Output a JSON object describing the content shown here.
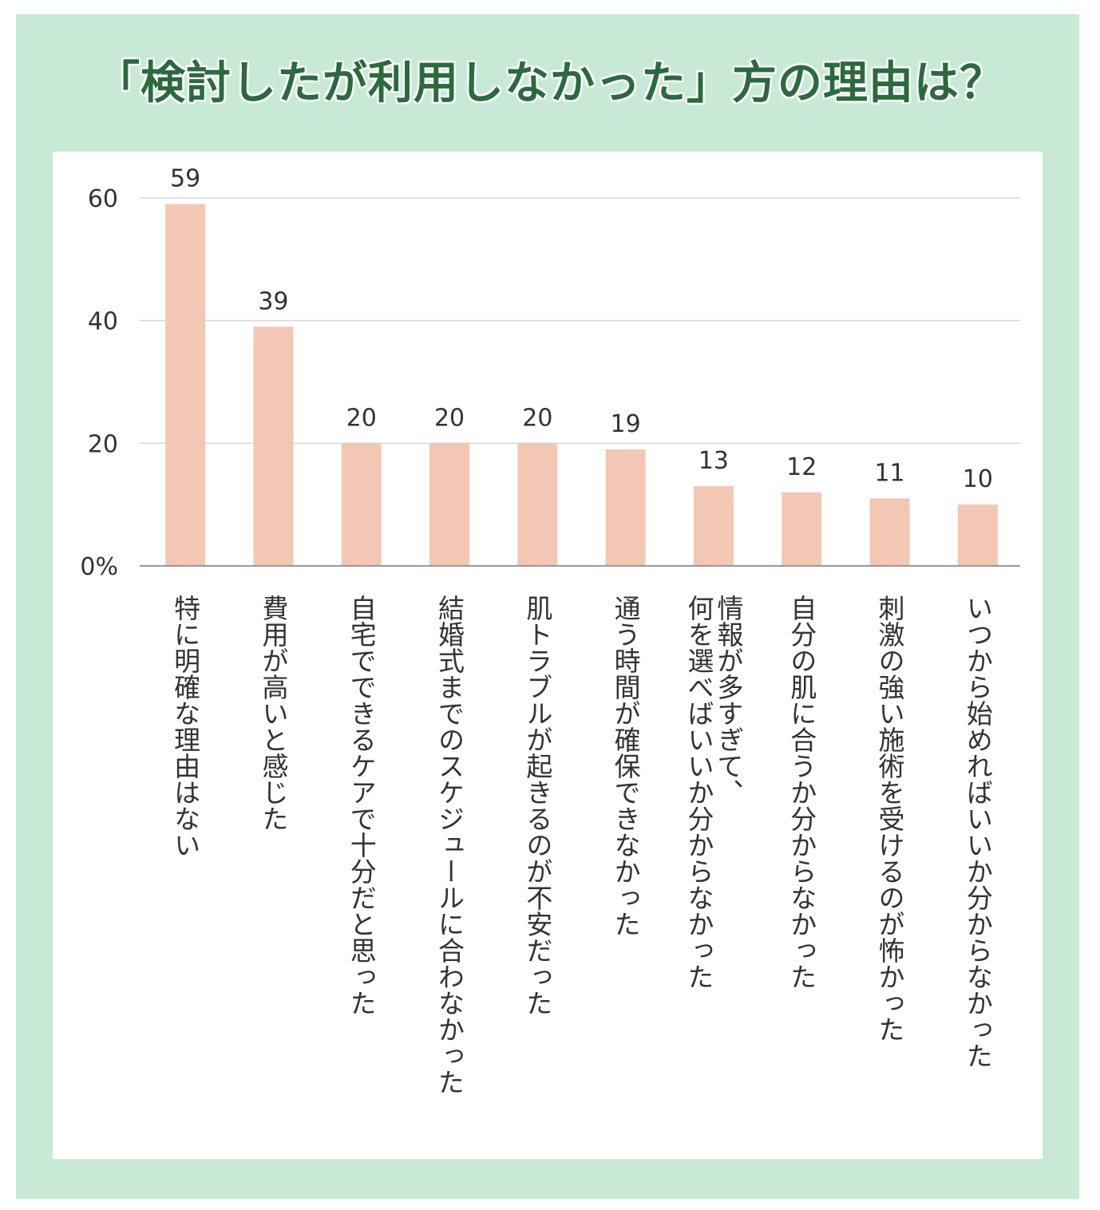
{
  "title": "「検討したが利用しなかった」方の理由は？",
  "chart_data": {
    "type": "bar",
    "title": "「検討したが利用しなかった」方の理由は？",
    "categories": [
      "特に明確な理由はない",
      "費用が高いと感じた",
      "自宅でできるケアで十分だと思った",
      "結婚式までのスケジュールに合わなかった",
      "肌トラブルが起きるのが不安だった",
      "通う時間が確保できなかった",
      "情報が多すぎて、\n何を選べばいいか分からなかった",
      "自分の肌に合うか分からなかった",
      "刺激の強い施術を受けるのが怖かった",
      "いつから始めればいいか分からなかった"
    ],
    "values": [
      59,
      39,
      20,
      20,
      20,
      19,
      13,
      12,
      11,
      10
    ],
    "ylim": [
      0,
      60
    ],
    "yticks": [
      0,
      20,
      40,
      60
    ],
    "ytick_labels": [
      "0%",
      "20",
      "40",
      "60"
    ],
    "grid": true,
    "colors": {
      "bar": "#f2c7b3",
      "grid": "#d9d9d9",
      "axis": "#999999",
      "title": "#2c6a3e",
      "frame": "#c7e9d6"
    }
  }
}
